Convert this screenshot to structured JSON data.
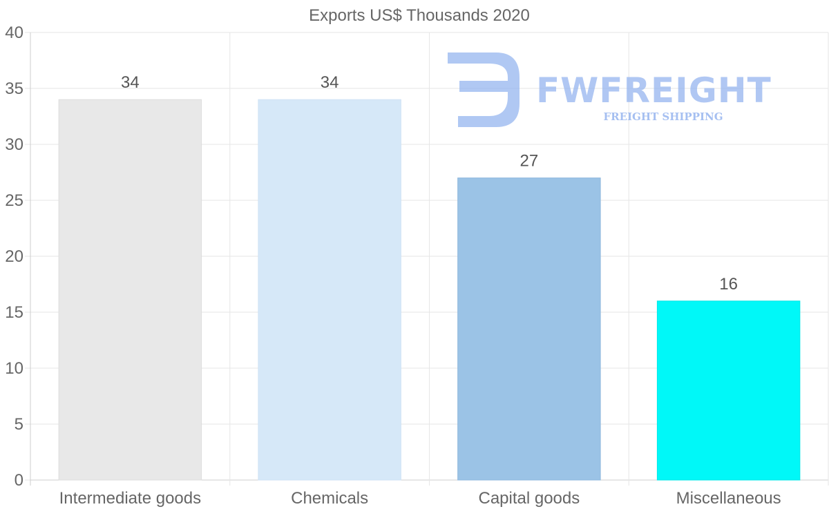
{
  "chart_data": {
    "type": "bar",
    "title": "Exports US$ Thousands 2020",
    "categories": [
      "Intermediate goods",
      "Chemicals",
      "Capital goods",
      "Miscellaneous"
    ],
    "values": [
      34,
      34,
      27,
      16
    ],
    "colors": [
      "#e8e8e8",
      "#d6e8f8",
      "#9bc3e6",
      "#00f8f8"
    ],
    "border_colors": [
      "#dddddd",
      "#cfe2f5",
      "#8fb8de",
      "#00e8e8"
    ],
    "ylim": [
      0,
      40
    ],
    "yticks": [
      0,
      5,
      10,
      15,
      20,
      25,
      30,
      35,
      40
    ],
    "xlabel": "",
    "ylabel": "",
    "grid": true,
    "data_labels": true
  },
  "watermark": {
    "brand": "FWFREIGHT",
    "tagline": "FREIGHT SHIPPING",
    "color": "#8fb0ee"
  }
}
